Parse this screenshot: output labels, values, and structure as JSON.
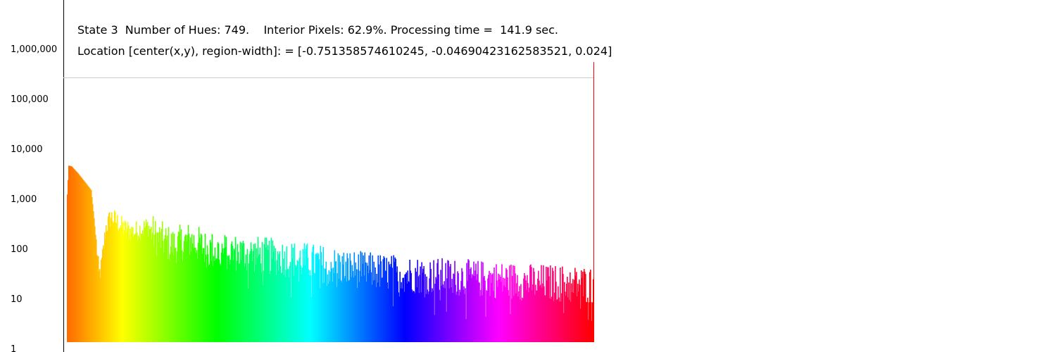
{
  "header": {
    "line1": "State 3  Number of Hues: 749.    Interior Pixels: 62.9%. Processing time =  141.9 sec.",
    "line2": "Location [center(x,y), region-width]: = [-0.751358574610245, -0.04690423162583521, 0.024]"
  },
  "chart_data": {
    "type": "bar",
    "title": "",
    "xlabel": "",
    "ylabel": "",
    "y_scale": "log",
    "ylim": [
      1,
      1000000
    ],
    "y_ticks": [
      1,
      10,
      100,
      1000,
      10000,
      100000,
      1000000
    ],
    "y_tick_labels": [
      "1",
      "10",
      "100",
      "1,000",
      "10,000",
      "100,000",
      "1,000,000"
    ],
    "reference_line": 200000,
    "interior_spike": 400000,
    "num_bars": 749,
    "color_order": "hue spectrum: orange, yellow, green, cyan, blue, magenta, red",
    "series_key_points": [
      {
        "bin": 0,
        "count": 900
      },
      {
        "bin": 2,
        "count": 3400
      },
      {
        "bin": 6,
        "count": 3300
      },
      {
        "bin": 15,
        "count": 2400
      },
      {
        "bin": 25,
        "count": 1600
      },
      {
        "bin": 34,
        "count": 1100
      },
      {
        "bin": 38,
        "count": 300
      },
      {
        "bin": 45,
        "count": 22
      },
      {
        "bin": 48,
        "count": 30
      },
      {
        "bin": 55,
        "count": 200
      },
      {
        "bin": 62,
        "count": 320
      },
      {
        "bin": 70,
        "count": 260
      },
      {
        "bin": 80,
        "count": 190
      },
      {
        "bin": 95,
        "count": 160
      },
      {
        "bin": 115,
        "count": 210
      },
      {
        "bin": 125,
        "count": 130
      },
      {
        "bin": 150,
        "count": 85
      },
      {
        "bin": 175,
        "count": 110
      },
      {
        "bin": 200,
        "count": 70
      },
      {
        "bin": 250,
        "count": 60
      },
      {
        "bin": 300,
        "count": 50
      },
      {
        "bin": 350,
        "count": 40
      },
      {
        "bin": 400,
        "count": 30
      },
      {
        "bin": 450,
        "count": 25
      },
      {
        "bin": 500,
        "count": 22
      },
      {
        "bin": 550,
        "count": 20
      },
      {
        "bin": 600,
        "count": 18
      },
      {
        "bin": 650,
        "count": 16
      },
      {
        "bin": 700,
        "count": 15
      },
      {
        "bin": 748,
        "count": 14
      }
    ]
  }
}
